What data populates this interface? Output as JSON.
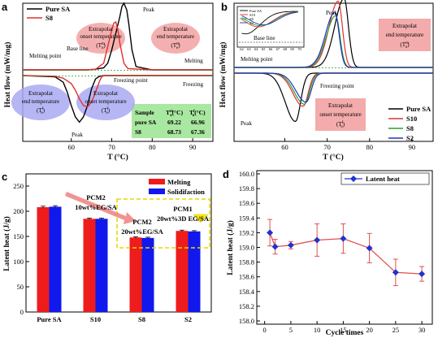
{
  "chart_data": [
    {
      "panel_label": "a",
      "type": "line",
      "xlabel": "T (°C)",
      "ylabel": "Heat flow (mW/mg)",
      "xlim": [
        48,
        95
      ],
      "xticks": [
        "60",
        "70",
        "80",
        "90"
      ],
      "series": [
        {
          "name": "Pure SA",
          "color": "#000000",
          "x": [
            48,
            55,
            60,
            64,
            66,
            68,
            69,
            70,
            71,
            72,
            72.5,
            73,
            73.7,
            74.2,
            75,
            76,
            80,
            95
          ],
          "y": [
            0,
            0,
            0,
            0,
            0.01,
            0.03,
            0.1,
            0.3,
            0.55,
            0.8,
            0.95,
            1.0,
            0.9,
            0.7,
            0.3,
            0.05,
            0,
            0
          ],
          "x_cool": [
            95,
            80,
            70,
            68,
            67,
            66,
            65,
            64,
            63,
            62,
            61,
            60,
            59,
            58,
            56,
            48
          ],
          "y_cool": [
            0,
            0,
            0,
            0,
            -0.01,
            -0.05,
            -0.2,
            -0.45,
            -0.62,
            -0.7,
            -0.62,
            -0.45,
            -0.25,
            -0.1,
            -0.02,
            0
          ]
        },
        {
          "name": "S8",
          "color": "#e03030",
          "x": [
            48,
            55,
            60,
            64,
            66,
            68,
            69,
            70,
            70.5,
            71,
            71.5,
            72,
            73,
            74,
            80,
            95
          ],
          "y": [
            0,
            0,
            0,
            0,
            0.01,
            0.1,
            0.35,
            0.6,
            0.7,
            0.72,
            0.6,
            0.4,
            0.1,
            0.02,
            0,
            0
          ],
          "x_cool": [
            95,
            80,
            70,
            68,
            67.5,
            67,
            66,
            65,
            64,
            63,
            62,
            61,
            60,
            58,
            56,
            48
          ],
          "y_cool": [
            0,
            0,
            0,
            0,
            -0.02,
            -0.08,
            -0.25,
            -0.4,
            -0.47,
            -0.45,
            -0.35,
            -0.22,
            -0.12,
            -0.04,
            -0.01,
            0
          ]
        }
      ],
      "annotations": [
        "Peak",
        "Peak",
        "Melting point",
        "Base line",
        "Freezing point",
        "Melting",
        "Freezing",
        "Extrapolat",
        "onset temperature",
        "end temperature"
      ],
      "sup": {
        "t": "T",
        "m": "m",
        "o": "o",
        "e": "e",
        "f": "f"
      },
      "table": {
        "headers": [
          "Sample",
          "T",
          "T"
        ],
        "rows": [
          [
            "pure SA",
            "69.22",
            "66.96"
          ],
          [
            "S8",
            "68.73",
            "67.36"
          ]
        ]
      }
    },
    {
      "panel_label": "b",
      "type": "line",
      "xlabel": "T (°C)",
      "ylabel": "Heat flow (mW/mg)",
      "xlim": [
        48,
        95
      ],
      "xticks": [
        "60",
        "70",
        "80",
        "90"
      ],
      "inset_xticks": [
        "62",
        "63",
        "64",
        "65",
        "66",
        "67",
        "68",
        "69",
        "70"
      ],
      "series": [
        {
          "name": "Pure SA",
          "color": "#000000",
          "heat_peak_x": 74.0,
          "heat_peak_y": 1.0,
          "cool_peak_x": 62.5,
          "cool_peak_y": -0.7
        },
        {
          "name": "S10",
          "color": "#e03030",
          "heat_peak_x": 72.6,
          "heat_peak_y": 0.96,
          "cool_peak_x": 64.3,
          "cool_peak_y": -0.48
        },
        {
          "name": "S8",
          "color": "#27a02a",
          "heat_peak_x": 72.0,
          "heat_peak_y": 0.75,
          "cool_peak_x": 64.6,
          "cool_peak_y": -0.45
        },
        {
          "name": "S2",
          "color": "#2233bb",
          "heat_peak_x": 71.8,
          "heat_peak_y": 0.8,
          "cool_peak_x": 65.0,
          "cool_peak_y": -0.42
        }
      ],
      "annotations": [
        "Peak",
        "Peak",
        "Melting point",
        "Freezing point",
        "Base line",
        "Extrapolat",
        "end temperature",
        "onset temperature"
      ]
    },
    {
      "panel_label": "c",
      "type": "bar",
      "ylabel": "Latent heat (J/g)",
      "ylim": [
        0,
        250
      ],
      "yticks": [
        "0",
        "50",
        "100",
        "150",
        "200",
        "250"
      ],
      "categories": [
        "Pure SA",
        "S10",
        "S8",
        "S2"
      ],
      "series": [
        {
          "name": "Melting",
          "color": "#ee1c1c",
          "values": [
            208,
            185,
            148,
            161
          ],
          "errors": [
            2,
            1.5,
            1.5,
            1.5
          ]
        },
        {
          "name": "Solidifaction",
          "color": "#1018ee",
          "values": [
            209,
            185,
            147,
            160
          ],
          "errors": [
            2,
            1.5,
            1.5,
            1.5
          ]
        }
      ],
      "annotations": [
        {
          "line1": "PCM2",
          "line2": "10wt%EG/SA"
        },
        {
          "line1": "PCM2",
          "line2": "20wt%EG/SA"
        },
        {
          "line1": "PCM1",
          "line2": "20wt%3D EG/SA"
        }
      ]
    },
    {
      "panel_label": "d",
      "type": "line",
      "xlabel": "Cycle times",
      "ylabel": "Latent heat (J/g)",
      "xlim": [
        -1.5,
        32
      ],
      "ylim": [
        158.0,
        160.0
      ],
      "xticks": [
        "0",
        "5",
        "10",
        "15",
        "20",
        "25",
        "30"
      ],
      "yticks": [
        "158.0",
        "158.2",
        "158.4",
        "158.6",
        "158.8",
        "159.0",
        "159.2",
        "159.4",
        "159.6",
        "159.8",
        "160.0"
      ],
      "series": [
        {
          "name": "Latent heat",
          "color": "#2233cc",
          "x": [
            1,
            2,
            5,
            10,
            15,
            20,
            25,
            30
          ],
          "values": [
            159.2,
            159.01,
            159.03,
            159.1,
            159.12,
            158.99,
            158.66,
            158.64
          ],
          "errors": [
            0.18,
            0.1,
            0.05,
            0.22,
            0.2,
            0.2,
            0.18,
            0.1
          ]
        }
      ],
      "legend_placement": "top-right"
    }
  ]
}
